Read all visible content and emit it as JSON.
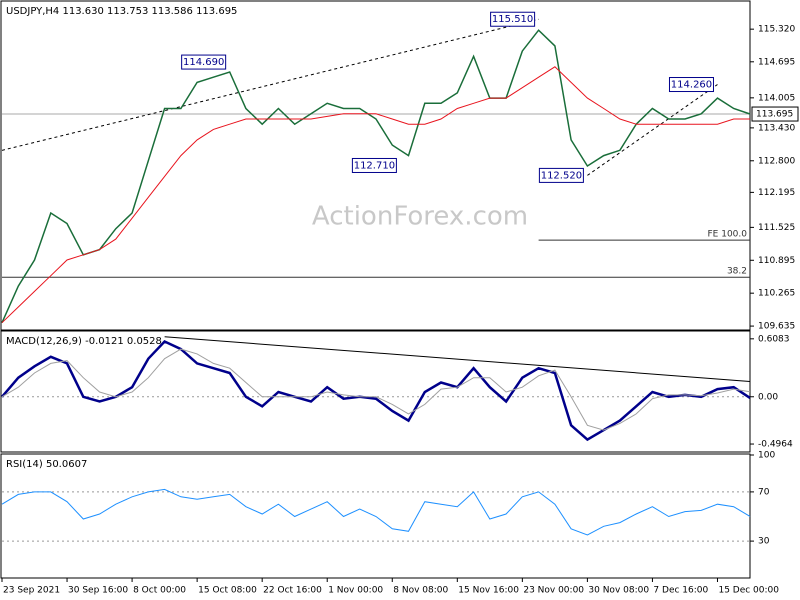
{
  "chart_data": [
    {
      "type": "line",
      "title": "USDJPY,H4  113.630 113.753 113.586 113.695",
      "watermark": "ActionForex.com",
      "x": [
        0,
        2,
        4,
        6,
        8,
        10,
        12,
        14,
        16,
        18,
        20,
        22,
        24,
        26,
        28,
        30,
        32,
        34,
        36,
        38,
        40,
        42,
        44,
        46,
        48,
        50,
        52,
        54,
        56,
        58,
        60,
        62,
        64,
        66,
        68,
        70,
        72,
        74,
        76,
        78,
        80,
        82,
        84,
        86,
        88,
        90,
        92
      ],
      "xlim": [
        0,
        92
      ],
      "ylim": [
        109.56,
        115.84
      ],
      "yticks": [
        {
          "value": 115.32,
          "label": "115.320"
        },
        114.695,
        114.005,
        {
          "value": 113.43,
          "label": "113.430"
        },
        {
          "value": 112.8,
          "label": "112.800"
        },
        112.195,
        111.525,
        110.895,
        110.265,
        109.635
      ],
      "series": [
        {
          "name": "USDJPY",
          "color": "#1a6e3a",
          "values": [
            109.7,
            110.4,
            110.9,
            111.8,
            111.6,
            111.0,
            111.1,
            111.5,
            111.8,
            112.8,
            113.8,
            113.8,
            114.3,
            114.4,
            114.5,
            113.8,
            113.5,
            113.8,
            113.5,
            113.7,
            113.9,
            113.8,
            113.8,
            113.6,
            113.1,
            112.9,
            113.9,
            113.9,
            114.1,
            114.8,
            114.0,
            114.0,
            114.9,
            115.3,
            115.0,
            113.2,
            112.7,
            112.9,
            113.0,
            113.5,
            113.8,
            113.6,
            113.6,
            113.7,
            114.0,
            113.8,
            113.695
          ]
        },
        {
          "name": "MA",
          "color": "#e8141e",
          "values": [
            109.7,
            110.0,
            110.3,
            110.6,
            110.9,
            111.0,
            111.1,
            111.3,
            111.7,
            112.1,
            112.5,
            112.9,
            113.2,
            113.4,
            113.5,
            113.6,
            113.6,
            113.6,
            113.6,
            113.6,
            113.65,
            113.7,
            113.7,
            113.7,
            113.6,
            113.5,
            113.5,
            113.6,
            113.8,
            113.9,
            114.0,
            114.0,
            114.2,
            114.4,
            114.6,
            114.3,
            114.0,
            113.8,
            113.6,
            113.5,
            113.5,
            113.5,
            113.5,
            113.5,
            113.5,
            113.6,
            113.6
          ]
        }
      ],
      "last": 113.695,
      "annotations": [
        {
          "x": 28,
          "value": 114.69,
          "label": "114.690"
        },
        {
          "x": 66,
          "value": 115.51,
          "label": "115.510"
        },
        {
          "x": 49,
          "value": 112.71,
          "label": "112.710"
        },
        {
          "x": 72,
          "value": 112.52,
          "label": "112.520"
        },
        {
          "x": 88,
          "value": 114.26,
          "label": "114.260"
        }
      ],
      "levels": [
        {
          "value": 111.28,
          "label": "FE 100.0",
          "from": 66
        },
        {
          "value": 110.57,
          "label": "38.2",
          "from": 0
        }
      ],
      "trendlines": [
        {
          "x": [
            0,
            66
          ],
          "y": [
            113.0,
            115.51
          ],
          "dashed": true
        },
        {
          "x": [
            72,
            88
          ],
          "y": [
            112.52,
            114.26
          ],
          "dashed": true
        }
      ]
    },
    {
      "type": "line",
      "title": "MACD(12,26,9) -0.0121 0.0528",
      "x": [
        0,
        2,
        4,
        6,
        8,
        10,
        12,
        14,
        16,
        18,
        20,
        22,
        24,
        26,
        28,
        30,
        32,
        34,
        36,
        38,
        40,
        42,
        44,
        46,
        48,
        50,
        52,
        54,
        56,
        58,
        60,
        62,
        64,
        66,
        68,
        70,
        72,
        74,
        76,
        78,
        80,
        82,
        84,
        86,
        88,
        90,
        92
      ],
      "xlim": [
        0,
        92
      ],
      "ylim": [
        -0.58,
        0.68
      ],
      "yticks": [
        0.6083,
        {
          "value": 0,
          "label": "0.00"
        },
        -0.4964
      ],
      "reference_lines": [
        0
      ],
      "series": [
        {
          "name": "MACD",
          "color": "#00008b",
          "values": [
            0.0,
            0.2,
            0.32,
            0.42,
            0.35,
            0.0,
            -0.05,
            0.0,
            0.1,
            0.4,
            0.58,
            0.5,
            0.35,
            0.3,
            0.25,
            0.0,
            -0.1,
            0.05,
            0.0,
            -0.05,
            0.1,
            -0.02,
            0.0,
            -0.02,
            -0.15,
            -0.25,
            0.05,
            0.15,
            0.1,
            0.3,
            0.1,
            -0.05,
            0.2,
            0.3,
            0.25,
            -0.3,
            -0.45,
            -0.35,
            -0.25,
            -0.1,
            0.05,
            0.0,
            0.02,
            0.0,
            0.08,
            0.1,
            -0.0121
          ]
        },
        {
          "name": "Signal",
          "color": "#a0a0a0",
          "values": [
            0.0,
            0.1,
            0.25,
            0.35,
            0.38,
            0.2,
            0.05,
            0.0,
            0.05,
            0.2,
            0.4,
            0.5,
            0.45,
            0.35,
            0.3,
            0.15,
            0.0,
            0.0,
            0.0,
            0.0,
            0.05,
            0.02,
            0.0,
            0.0,
            -0.08,
            -0.18,
            -0.08,
            0.08,
            0.1,
            0.2,
            0.2,
            0.05,
            0.1,
            0.22,
            0.28,
            0.0,
            -0.3,
            -0.35,
            -0.28,
            -0.18,
            -0.02,
            0.02,
            0.02,
            0.01,
            0.04,
            0.08,
            0.0528
          ]
        }
      ],
      "trendlines": [
        {
          "x": [
            20,
            92
          ],
          "y": [
            0.63,
            0.16
          ],
          "dashed": false
        }
      ]
    },
    {
      "type": "line",
      "title": "RSI(14) 50.0607",
      "x": [
        0,
        2,
        4,
        6,
        8,
        10,
        12,
        14,
        16,
        18,
        20,
        22,
        24,
        26,
        28,
        30,
        32,
        34,
        36,
        38,
        40,
        42,
        44,
        46,
        48,
        50,
        52,
        54,
        56,
        58,
        60,
        62,
        64,
        66,
        68,
        70,
        72,
        74,
        76,
        78,
        80,
        82,
        84,
        86,
        88,
        90,
        92
      ],
      "xlim": [
        0,
        92
      ],
      "ylim": [
        0,
        100
      ],
      "yticks": [
        100,
        70,
        30
      ],
      "reference_lines": [
        30,
        70
      ],
      "series": [
        {
          "name": "RSI",
          "color": "#1e90ff",
          "values": [
            60,
            68,
            70,
            70,
            62,
            48,
            52,
            60,
            66,
            70,
            72,
            66,
            64,
            66,
            68,
            58,
            52,
            60,
            50,
            56,
            62,
            50,
            56,
            50,
            40,
            38,
            62,
            60,
            58,
            70,
            48,
            52,
            66,
            70,
            60,
            40,
            35,
            42,
            45,
            52,
            58,
            50,
            54,
            55,
            60,
            58,
            50.0607
          ]
        }
      ],
      "xticks": [
        {
          "value": 0,
          "label": "23 Sep 2021"
        },
        {
          "value": 8,
          "label": "30 Sep 16:00"
        },
        {
          "value": 16,
          "label": "8 Oct 00:00"
        },
        {
          "value": 24,
          "label": "15 Oct 08:00"
        },
        {
          "value": 32,
          "label": "22 Oct 16:00"
        },
        {
          "value": 40,
          "label": "1 Nov 00:00"
        },
        {
          "value": 48,
          "label": "8 Nov 08:00"
        },
        {
          "value": 56,
          "label": "15 Nov 16:00"
        },
        {
          "value": 64,
          "label": "23 Nov 00:00"
        },
        {
          "value": 72,
          "label": "30 Nov 08:00"
        },
        {
          "value": 80,
          "label": "7 Dec 16:00"
        },
        {
          "value": 88,
          "label": "15 Dec 00:00"
        }
      ]
    }
  ]
}
